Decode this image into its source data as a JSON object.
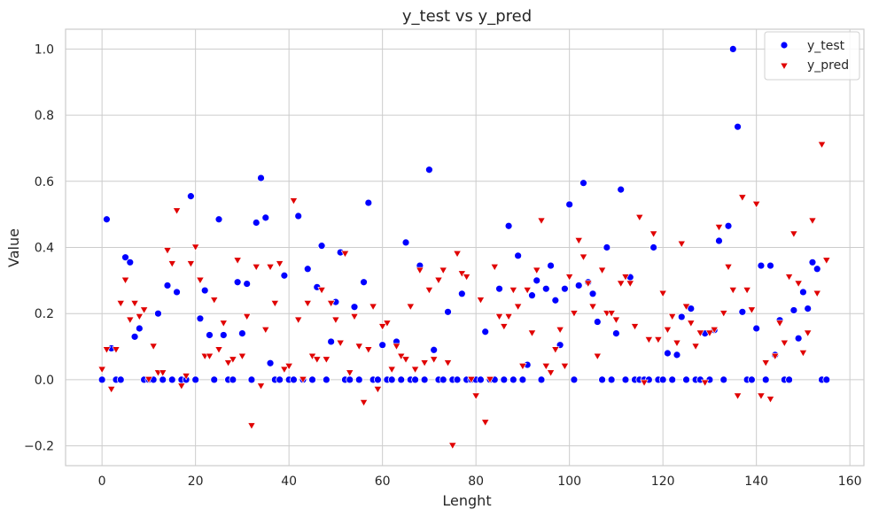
{
  "chart_data": {
    "type": "scatter",
    "title": "y_test vs y_pred",
    "xlabel": "Lenght",
    "ylabel": "Value",
    "xlim": [
      -7.8,
      163
    ],
    "ylim": [
      -0.26,
      1.06
    ],
    "xticks": [
      0,
      20,
      40,
      60,
      80,
      100,
      120,
      140,
      160
    ],
    "yticks": [
      -0.2,
      0.0,
      0.2,
      0.4,
      0.6,
      0.8,
      1.0
    ],
    "xtick_labels": [
      "0",
      "20",
      "40",
      "60",
      "80",
      "100",
      "120",
      "140",
      "160"
    ],
    "ytick_labels": [
      "−0.2",
      "0.0",
      "0.2",
      "0.4",
      "0.6",
      "0.8",
      "1.0"
    ],
    "grid": true,
    "legend_position": "top-right",
    "series": [
      {
        "name": "y_test",
        "marker": "circle",
        "color": "#0000ff",
        "y": [
          0.0,
          0.485,
          0.095,
          0.0,
          0.0,
          0.37,
          0.355,
          0.13,
          0.155,
          0.0,
          0.0,
          0.0,
          0.2,
          0.0,
          0.285,
          0.0,
          0.265,
          0.0,
          0.0,
          0.555,
          0.0,
          0.185,
          0.27,
          0.135,
          0.0,
          0.485,
          0.135,
          0.0,
          0.0,
          0.295,
          0.14,
          0.29,
          0.0,
          0.475,
          0.61,
          0.49,
          0.05,
          0.0,
          0.0,
          0.315,
          0.0,
          0.0,
          0.495,
          0.0,
          0.335,
          0.0,
          0.28,
          0.405,
          0.0,
          0.115,
          0.235,
          0.385,
          0.0,
          0.0,
          0.22,
          0.0,
          0.295,
          0.535,
          0.0,
          0.0,
          0.105,
          0.0,
          0.0,
          0.115,
          0.0,
          0.415,
          0.0,
          0.0,
          0.345,
          0.0,
          0.635,
          0.09,
          0.0,
          0.0,
          0.205,
          0.0,
          0.0,
          0.26,
          0.0,
          0.0,
          0.0,
          0.0,
          0.145,
          0.0,
          0.0,
          0.275,
          0.0,
          0.465,
          0.0,
          0.375,
          0.0,
          0.045,
          0.255,
          0.3,
          0.0,
          0.275,
          0.345,
          0.24,
          0.105,
          0.275,
          0.53,
          0.0,
          0.285,
          0.595,
          0.295,
          0.26,
          0.175,
          0.0,
          0.4,
          0.0,
          0.14,
          0.575,
          0.0,
          0.31,
          0.0,
          0.0,
          0.0,
          0.0,
          0.4,
          0.0,
          0.0,
          0.08,
          0.0,
          0.075,
          0.19,
          0.0,
          0.215,
          0.0,
          0.0,
          0.14,
          0.0,
          0.15,
          0.42,
          0.0,
          0.465,
          1.0,
          0.765,
          0.205,
          0.0,
          0.0,
          0.155,
          0.345,
          0.0,
          0.345,
          0.075,
          0.18,
          0.0,
          0.0,
          0.21,
          0.125,
          0.265,
          0.215,
          0.355,
          0.335,
          0.0,
          0.0
        ]
      },
      {
        "name": "y_pred",
        "marker": "triangle-down",
        "color": "#e00000",
        "y": [
          0.03,
          0.09,
          -0.03,
          0.09,
          0.23,
          0.3,
          0.18,
          0.23,
          0.19,
          0.21,
          0.0,
          0.1,
          0.02,
          0.02,
          0.39,
          0.35,
          0.51,
          -0.02,
          0.01,
          0.35,
          0.4,
          0.3,
          0.07,
          0.07,
          0.24,
          0.09,
          0.17,
          0.05,
          0.06,
          0.36,
          0.07,
          0.19,
          -0.14,
          0.34,
          -0.02,
          0.15,
          0.34,
          0.23,
          0.35,
          0.03,
          0.04,
          0.54,
          0.18,
          0.0,
          0.23,
          0.07,
          0.06,
          0.27,
          0.06,
          0.23,
          0.18,
          0.11,
          0.38,
          0.02,
          0.19,
          0.1,
          -0.07,
          0.09,
          0.22,
          -0.03,
          0.16,
          0.17,
          0.03,
          0.1,
          0.07,
          0.06,
          0.22,
          0.03,
          0.33,
          0.05,
          0.27,
          0.06,
          0.3,
          0.33,
          0.05,
          -0.2,
          0.38,
          0.32,
          0.31,
          0.0,
          -0.05,
          0.24,
          -0.13,
          0.0,
          0.34,
          0.19,
          0.16,
          0.19,
          0.27,
          0.22,
          0.04,
          0.27,
          0.14,
          0.33,
          0.48,
          0.04,
          0.02,
          0.09,
          0.15,
          0.04,
          0.31,
          0.2,
          0.42,
          0.37,
          0.29,
          0.22,
          0.07,
          0.33,
          0.2,
          0.2,
          0.18,
          0.29,
          0.31,
          0.29,
          0.16,
          0.49,
          -0.01,
          0.12,
          0.44,
          0.12,
          0.26,
          0.15,
          0.19,
          0.11,
          0.41,
          0.22,
          0.17,
          0.1,
          0.14,
          -0.01,
          0.14,
          0.15,
          0.46,
          0.2,
          0.34,
          0.27,
          -0.05,
          0.55,
          0.27,
          0.21,
          0.53,
          -0.05,
          0.05,
          -0.06,
          0.07,
          0.17,
          0.11,
          0.31,
          0.44,
          0.29,
          0.08,
          0.14,
          0.48,
          0.26,
          0.71,
          0.36
        ]
      }
    ]
  }
}
